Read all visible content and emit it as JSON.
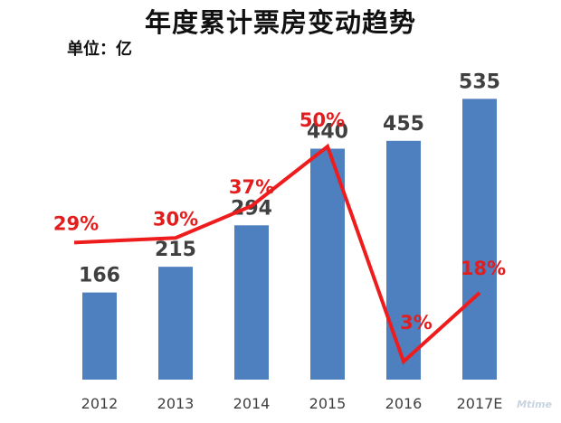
{
  "chart_data": {
    "type": "bar",
    "title": "年度累计票房变动趋势",
    "unit_label": "单位：亿",
    "categories": [
      "2012",
      "2013",
      "2014",
      "2015",
      "2016",
      "2017E"
    ],
    "values": [
      166,
      215,
      294,
      440,
      455,
      535
    ],
    "value_labels": [
      "166",
      "215",
      "294",
      "440",
      "455",
      "535"
    ],
    "growth": [
      29,
      30,
      37,
      50,
      3,
      18
    ],
    "growth_labels": [
      "29%",
      "30%",
      "37%",
      "50%",
      "3%",
      "18%"
    ],
    "ylim": [
      0,
      620
    ],
    "grid": false,
    "legend": "none",
    "colors": {
      "bar": "#4e7fbe",
      "line": "#ee1c1c",
      "value_label": "#404040",
      "growth_label": "#e31d1d"
    }
  },
  "watermark": "Mtime"
}
